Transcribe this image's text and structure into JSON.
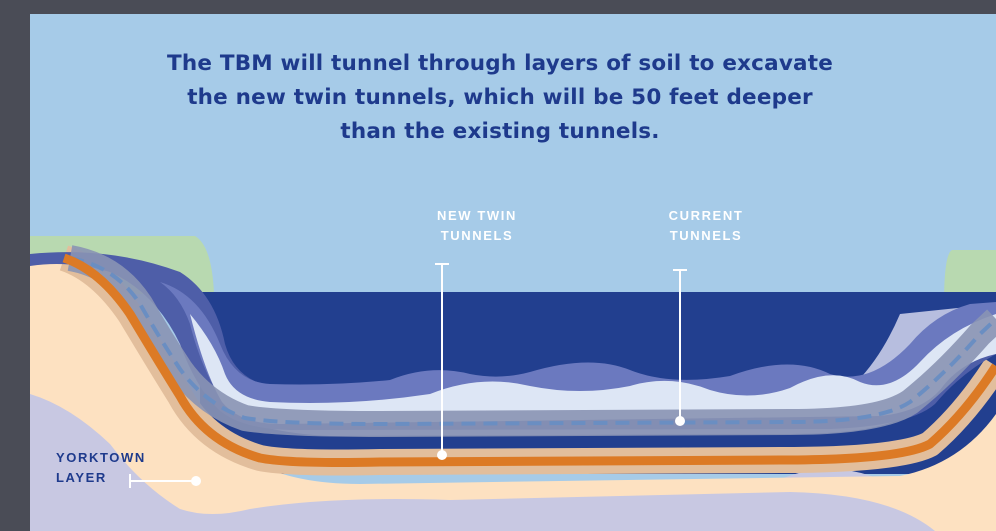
{
  "headline": {
    "line1": "The TBM will tunnel through layers of soil to excavate",
    "line2": "the new twin tunnels, which will be 50 feet deeper",
    "line3": "than the existing tunnels."
  },
  "labels": {
    "new_twin_tunnels": {
      "line1": "NEW TWIN",
      "line2": "TUNNELS"
    },
    "current_tunnels": {
      "line1": "CURRENT",
      "line2": "TUNNELS"
    },
    "yorktown_layer": {
      "line1": "YORKTOWN",
      "line2": "LAYER"
    }
  },
  "colors": {
    "sky": "#a6cbe8",
    "water": "#223f8f",
    "upper_soil": "#4e5ea8",
    "mid_soil": "#6b79bf",
    "light_soil": "#dde6f5",
    "lavender": "#b7bedf",
    "sand": "#fde1c1",
    "orange_tunnel": "#dc7a25",
    "tan_band": "#e2be9c",
    "current_tunnel_band": "#8a93b4",
    "bedrock": "#c8c8e2",
    "grass": "#b8d9b0",
    "label_text": "#1e3a8c"
  }
}
